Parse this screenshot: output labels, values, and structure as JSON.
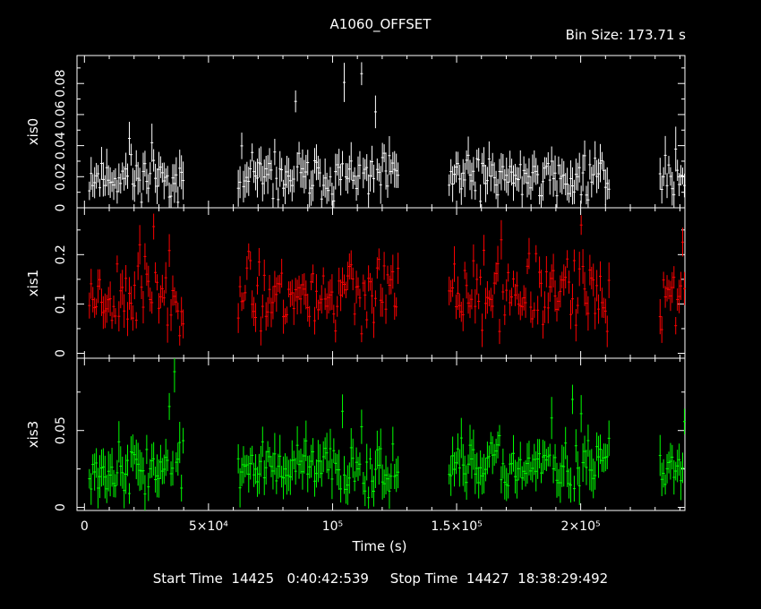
{
  "title": "A1060_OFFSET",
  "bin_size_label": "Bin Size:  173.71  s",
  "footer": {
    "start_label": "Start Time  14425   0:40:42:539",
    "stop_label": "Stop Time  14427  18:38:29:492"
  },
  "chart_data": {
    "type": "line",
    "title": "A1060_OFFSET",
    "xlabel": "Time (s)",
    "xlim": [
      -3000,
      242000
    ],
    "x_ticks": [
      {
        "value": 0,
        "label": "0"
      },
      {
        "value": 50000,
        "label": "5×10⁴"
      },
      {
        "value": 100000,
        "label": "10⁵"
      },
      {
        "value": 150000,
        "label": "1.5×10⁵"
      },
      {
        "value": 200000,
        "label": "2×10⁵"
      }
    ],
    "time_segments": [
      [
        2000,
        40000
      ],
      [
        62000,
        127000
      ],
      [
        147000,
        212000
      ],
      [
        232000,
        242000
      ]
    ],
    "panels": [
      {
        "name": "xis0",
        "ylabel": "xis0",
        "color": "#ffffff",
        "ylim": [
          0,
          0.098
        ],
        "y_ticks": [
          {
            "value": 0,
            "label": "0"
          },
          {
            "value": 0.02,
            "label": "0.02"
          },
          {
            "value": 0.04,
            "label": "0.04"
          },
          {
            "value": 0.06,
            "label": "0.06"
          },
          {
            "value": 0.08,
            "label": "0.08"
          }
        ],
        "typical": 0.02,
        "spread": 0.009,
        "err": 0.009,
        "seed": 11,
        "spikes": [
          [
            18000,
            0.05
          ],
          [
            27000,
            0.048
          ],
          [
            85000,
            0.072
          ],
          [
            105000,
            0.087
          ],
          [
            112000,
            0.09
          ],
          [
            117000,
            0.067
          ],
          [
            238000,
            0.045
          ]
        ]
      },
      {
        "name": "xis1",
        "ylabel": "xis1",
        "color": "#ff0000",
        "ylim": [
          -0.01,
          0.295
        ],
        "y_ticks": [
          {
            "value": 0,
            "label": "0"
          },
          {
            "value": 0.1,
            "label": "0.1"
          },
          {
            "value": 0.2,
            "label": "0.2"
          }
        ],
        "typical": 0.12,
        "spread": 0.045,
        "err": 0.026,
        "seed": 23,
        "spikes": [
          [
            22000,
            0.24
          ],
          [
            28000,
            0.27
          ],
          [
            168000,
            0.25
          ],
          [
            200000,
            0.27
          ],
          [
            241000,
            0.24
          ]
        ]
      },
      {
        "name": "xis3",
        "ylabel": "xis3",
        "color": "#00ff00",
        "ylim": [
          -0.002,
          0.097
        ],
        "y_ticks": [
          {
            "value": 0,
            "label": "0"
          },
          {
            "value": 0.05,
            "label": "0.05"
          }
        ],
        "typical": 0.026,
        "spread": 0.01,
        "err": 0.01,
        "seed": 37,
        "spikes": [
          [
            34000,
            0.07
          ],
          [
            36000,
            0.095
          ],
          [
            104000,
            0.068
          ],
          [
            112000,
            0.058
          ],
          [
            188000,
            0.065
          ],
          [
            197000,
            0.075
          ],
          [
            200000,
            0.067
          ],
          [
            242000,
            0.06
          ]
        ]
      }
    ]
  }
}
